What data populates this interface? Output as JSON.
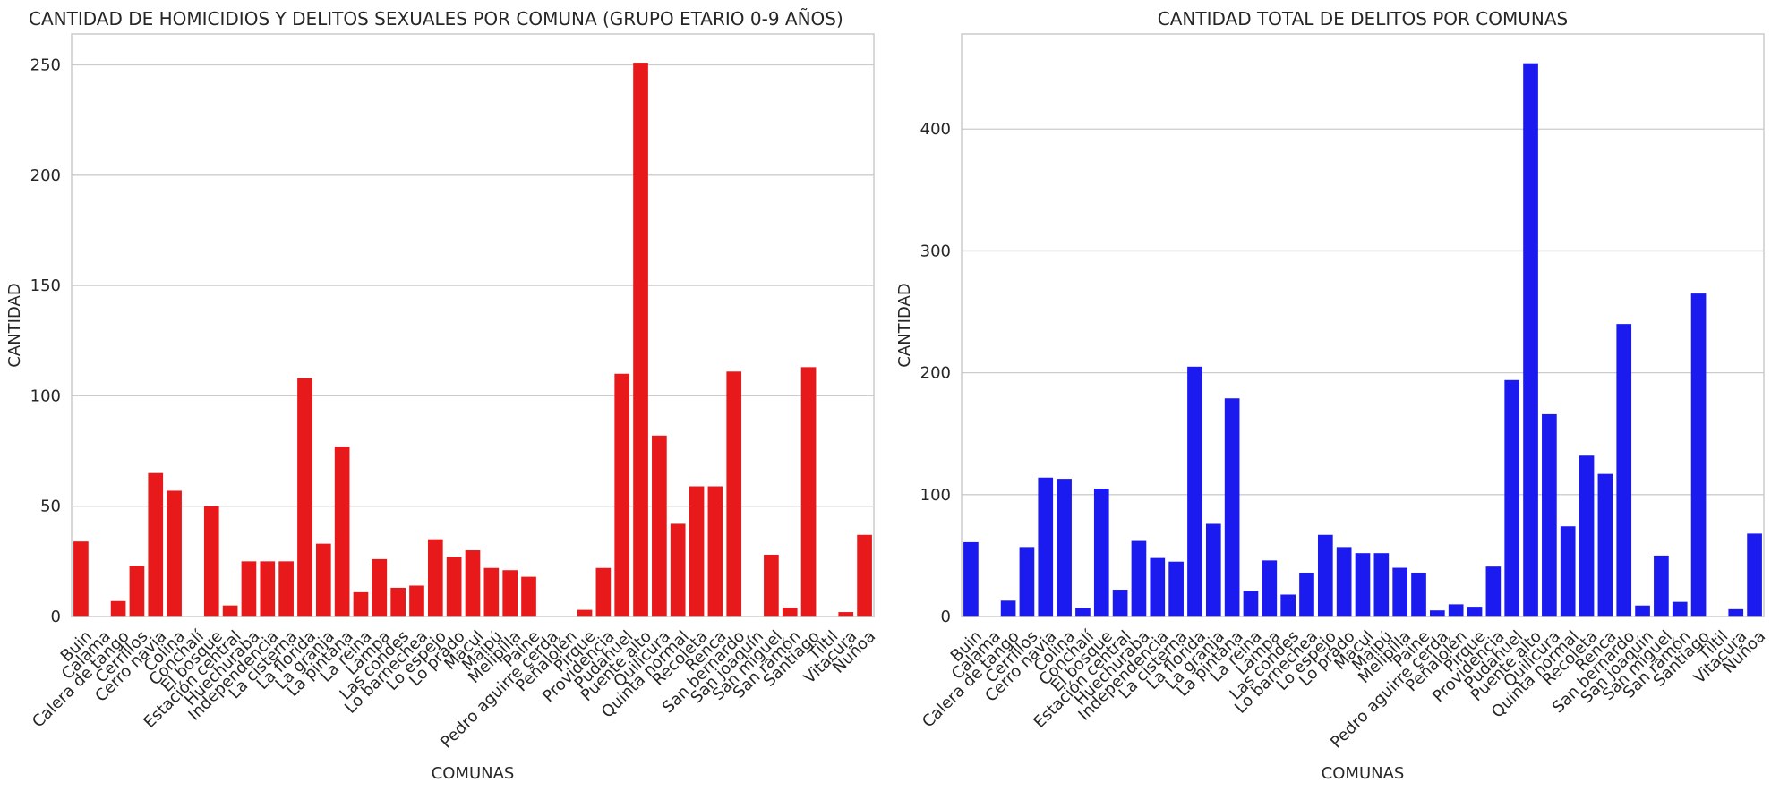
{
  "chart_data": [
    {
      "type": "bar",
      "title": "CANTIDAD DE HOMICIDIOS Y DELITOS SEXUALES POR COMUNA (GRUPO ETARIO 0-9 AÑOS)",
      "xlabel": "COMUNAS",
      "ylabel": "CANTIDAD",
      "ylim": [
        0,
        264
      ],
      "yticks": [
        0,
        50,
        100,
        150,
        200,
        250
      ],
      "grid": true,
      "color": "#e8191a",
      "categories": [
        "Buin",
        "Calama",
        "Calera de tango",
        "Cerrillos",
        "Cerro navia",
        "Colina",
        "Conchalí",
        "El bosque",
        "Estación central",
        "Huechuraba",
        "Independencia",
        "La cisterna",
        "La florida",
        "La granja",
        "La pintana",
        "La reina",
        "Lampa",
        "Las condes",
        "Lo barnechea",
        "Lo espejo",
        "Lo prado",
        "Macul",
        "Maipú",
        "Melipilla",
        "Paine",
        "Pedro  aguirre cerda",
        "Peñalolén",
        "Pirque",
        "Providencia",
        "Pudahuel",
        "Puente alto",
        "Quilicura",
        "Quinta normal",
        "Recoleta",
        "Renca",
        "San bernardo",
        "San joaquín",
        "San miguel",
        "San ramón",
        "Santiago",
        "Tiltil",
        "Vitacura",
        "Ñuñoa"
      ],
      "values": [
        34,
        0,
        7,
        23,
        65,
        57,
        0,
        50,
        5,
        25,
        25,
        25,
        108,
        33,
        77,
        11,
        26,
        13,
        14,
        35,
        27,
        30,
        22,
        21,
        18,
        0,
        0,
        3,
        22,
        110,
        251,
        82,
        42,
        59,
        59,
        111,
        0,
        28,
        4,
        113,
        0,
        2,
        37
      ]
    },
    {
      "type": "bar",
      "title": "CANTIDAD TOTAL DE DELITOS POR COMUNAS",
      "xlabel": "COMUNAS",
      "ylabel": "CANTIDAD",
      "ylim": [
        0,
        478
      ],
      "yticks": [
        0,
        100,
        200,
        300,
        400
      ],
      "grid": true,
      "color": "#1b1bf0",
      "categories": [
        "Buin",
        "Calama",
        "Calera de tango",
        "Cerrillos",
        "Cerro navia",
        "Colina",
        "Conchalí",
        "El bosque",
        "Estación central",
        "Huechuraba",
        "Independencia",
        "La cisterna",
        "La florida",
        "La granja",
        "La pintana",
        "La reina",
        "Lampa",
        "Las condes",
        "Lo barnechea",
        "Lo espejo",
        "Lo prado",
        "Macul",
        "Maipú",
        "Melipilla",
        "Paine",
        "Pedro  aguirre cerda",
        "Peñalolén",
        "Pirque",
        "Providencia",
        "Pudahuel",
        "Puente alto",
        "Quilicura",
        "Quinta normal",
        "Recoleta",
        "Renca",
        "San bernardo",
        "San joaquín",
        "San miguel",
        "San ramón",
        "Santiago",
        "Tiltil",
        "Vitacura",
        "Ñuñoa"
      ],
      "values": [
        61,
        0,
        13,
        57,
        114,
        113,
        7,
        105,
        22,
        62,
        48,
        45,
        205,
        76,
        179,
        21,
        46,
        18,
        36,
        67,
        57,
        52,
        52,
        40,
        36,
        5,
        10,
        8,
        41,
        194,
        454,
        166,
        74,
        132,
        117,
        240,
        9,
        50,
        12,
        265,
        0,
        6,
        68
      ]
    }
  ]
}
